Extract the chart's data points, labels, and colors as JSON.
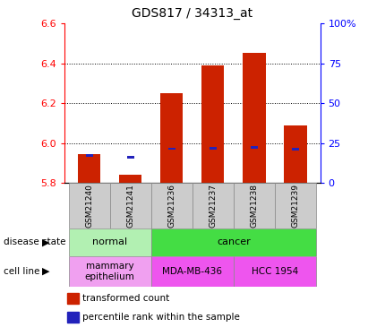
{
  "title": "GDS817 / 34313_at",
  "samples": [
    "GSM21240",
    "GSM21241",
    "GSM21236",
    "GSM21237",
    "GSM21238",
    "GSM21239"
  ],
  "red_values": [
    5.945,
    5.84,
    6.25,
    6.39,
    6.455,
    6.09
  ],
  "blue_values": [
    5.94,
    5.93,
    5.972,
    5.975,
    5.977,
    5.97
  ],
  "ylim_left": [
    5.8,
    6.6
  ],
  "ylim_right": [
    0,
    100
  ],
  "yticks_left": [
    5.8,
    6.0,
    6.2,
    6.4,
    6.6
  ],
  "yticks_right": [
    0,
    25,
    50,
    75,
    100
  ],
  "ytick_labels_right": [
    "0",
    "25",
    "50",
    "75",
    "100%"
  ],
  "bar_bottom": 5.8,
  "bar_width": 0.55,
  "normal_color": "#b2f0b2",
  "cancer_color": "#44dd44",
  "mammary_color": "#f0a0f0",
  "mda_color": "#ee55ee",
  "hcc_color": "#ee55ee",
  "bar_color": "#cc2200",
  "blue_color": "#2222bb",
  "sample_bg": "#cccccc",
  "title_fontsize": 10,
  "tick_fontsize": 8,
  "label_fontsize": 8,
  "legend_fontsize": 7.5
}
